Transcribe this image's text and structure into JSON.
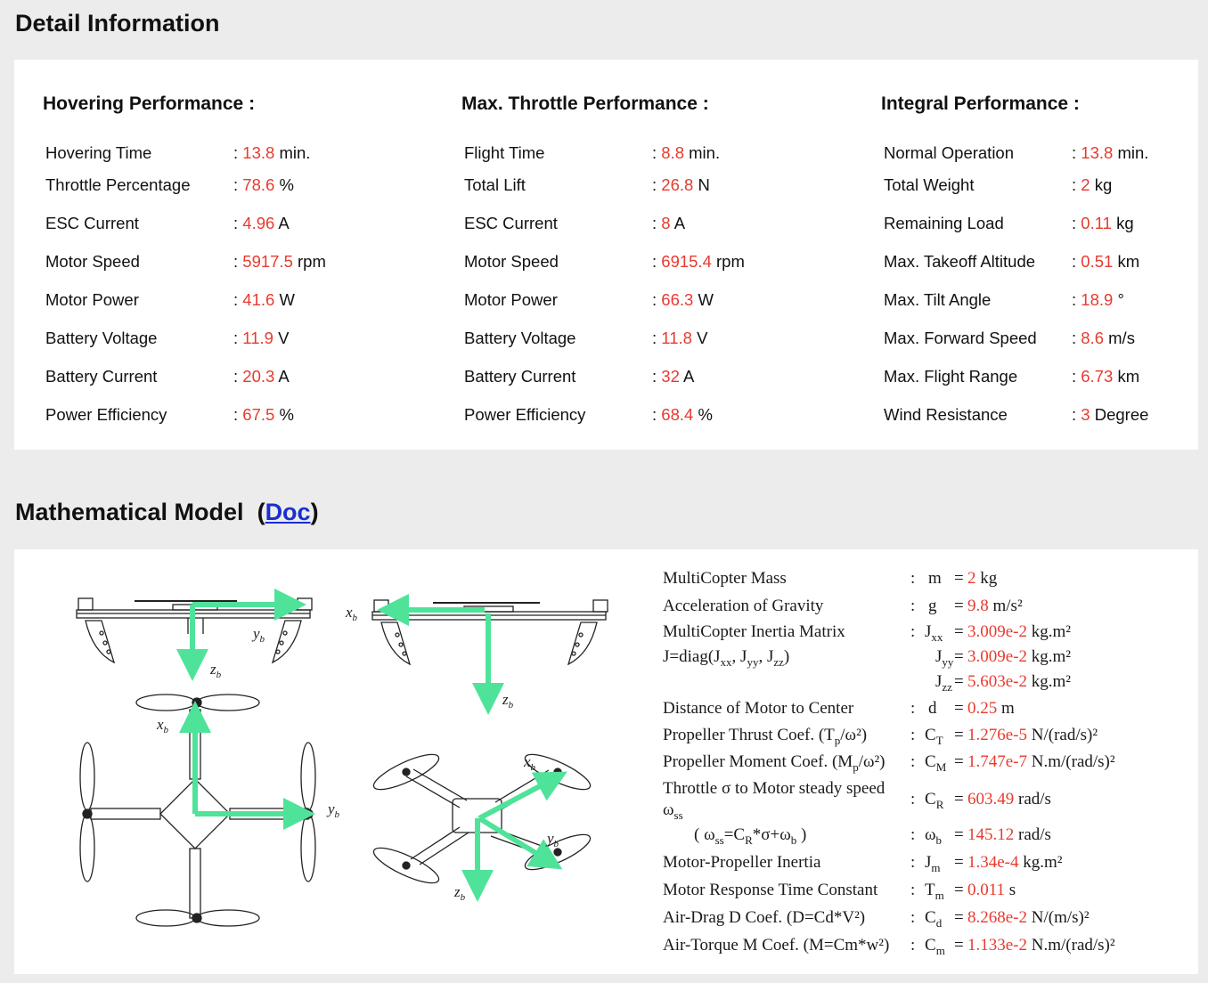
{
  "detail": {
    "title": "Detail Information",
    "columns": [
      {
        "title": "Hovering Performance :",
        "rows": [
          {
            "label": "Hovering Time",
            "value": "13.8",
            "unit": "min."
          },
          {
            "label": "Throttle Percentage",
            "value": "78.6",
            "unit": "%"
          },
          {
            "label": "ESC Current",
            "value": "4.96",
            "unit": "A"
          },
          {
            "label": "Motor Speed",
            "value": "5917.5",
            "unit": "rpm"
          },
          {
            "label": "Motor Power",
            "value": "41.6",
            "unit": "W"
          },
          {
            "label": "Battery Voltage",
            "value": "11.9",
            "unit": "V"
          },
          {
            "label": "Battery Current",
            "value": "20.3",
            "unit": "A"
          },
          {
            "label": "Power Efficiency",
            "value": "67.5",
            "unit": "%"
          }
        ]
      },
      {
        "title": "Max. Throttle Performance :",
        "rows": [
          {
            "label": "Flight Time",
            "value": "8.8",
            "unit": "min."
          },
          {
            "label": "Total Lift",
            "value": "26.8",
            "unit": "N"
          },
          {
            "label": "ESC Current",
            "value": "8",
            "unit": "A"
          },
          {
            "label": "Motor Speed",
            "value": "6915.4",
            "unit": "rpm"
          },
          {
            "label": "Motor Power",
            "value": "66.3",
            "unit": "W"
          },
          {
            "label": "Battery Voltage",
            "value": "11.8",
            "unit": "V"
          },
          {
            "label": "Battery Current",
            "value": "32",
            "unit": "A"
          },
          {
            "label": "Power Efficiency",
            "value": "68.4",
            "unit": "%"
          }
        ]
      },
      {
        "title": "Integral Performance :",
        "rows": [
          {
            "label": "Normal Operation",
            "value": "13.8",
            "unit": "min."
          },
          {
            "label": "Total Weight",
            "value": "2",
            "unit": "kg"
          },
          {
            "label": "Remaining Load",
            "value": "0.11",
            "unit": "kg"
          },
          {
            "label": "Max. Takeoff Altitude",
            "value": "0.51",
            "unit": "km"
          },
          {
            "label": "Max. Tilt Angle",
            "value": "18.9",
            "unit": "°"
          },
          {
            "label": "Max. Forward Speed",
            "value": "8.6",
            "unit": "m/s"
          },
          {
            "label": "Max. Flight Range",
            "value": "6.73",
            "unit": "km"
          },
          {
            "label": "Wind Resistance",
            "value": "3",
            "unit": "Degree"
          }
        ]
      }
    ]
  },
  "model": {
    "title": "Mathematical Model",
    "doc_link": "Doc",
    "diagram_labels": {
      "yb": "y",
      "zb": "z",
      "xb": "x",
      "sub": "b"
    },
    "rows": [
      {
        "label": "MultiCopter Mass",
        "sym": "m",
        "sub": "",
        "value": "2",
        "unit": "kg"
      },
      {
        "label": "Acceleration of Gravity",
        "sym": "g",
        "sub": "",
        "value": "9.8",
        "unit": "m/s²"
      },
      {
        "label": "MultiCopter Inertia Matrix",
        "sym": "J",
        "sub": "xx",
        "value": "3.009e-2",
        "unit": "kg.m²"
      },
      {
        "label": "",
        "sym": "J",
        "sub": "yy",
        "value": "3.009e-2",
        "unit": "kg.m²"
      },
      {
        "label": "",
        "sym": "J",
        "sub": "zz",
        "value": "5.603e-2",
        "unit": "kg.m²"
      },
      {
        "label": "Distance of Motor to Center",
        "sym": "d",
        "sub": "",
        "value": "0.25",
        "unit": "m"
      },
      {
        "label": "Propeller Thrust Coef.",
        "sym": "C",
        "sub": "T",
        "value": "1.276e-5",
        "unit": "N/(rad/s)²"
      },
      {
        "label": "Propeller Moment Coef.",
        "sym": "C",
        "sub": "M",
        "value": "1.747e-7",
        "unit": "N.m/(rad/s)²"
      },
      {
        "label": "Throttle σ to Motor steady speed",
        "sym": "C",
        "sub": "R",
        "value": "603.49",
        "unit": "rad/s"
      },
      {
        "label": "",
        "sym": "ω",
        "sub": "b",
        "value": "145.12",
        "unit": "rad/s"
      },
      {
        "label": "Motor-Propeller Inertia",
        "sym": "J",
        "sub": "m",
        "value": "1.34e-4",
        "unit": "kg.m²"
      },
      {
        "label": "Motor Response Time Constant",
        "sym": "T",
        "sub": "m",
        "value": "0.011",
        "unit": "s"
      },
      {
        "label": "Air-Drag D Coef. (D=Cd*V²)",
        "sym": "C",
        "sub": "d",
        "value": "8.268e-2",
        "unit": "N/(m/s)²"
      },
      {
        "label": "Air-Torque M Coef. (M=Cm*w²)",
        "sym": "C",
        "sub": "m",
        "value": "1.133e-2",
        "unit": "N.m/(rad/s)²"
      }
    ],
    "inertia_note": "J=diag(J",
    "thrust_note": "(T",
    "moment_note": "(M",
    "omega_ss": "ω",
    "omega_formula": "( ω"
  }
}
